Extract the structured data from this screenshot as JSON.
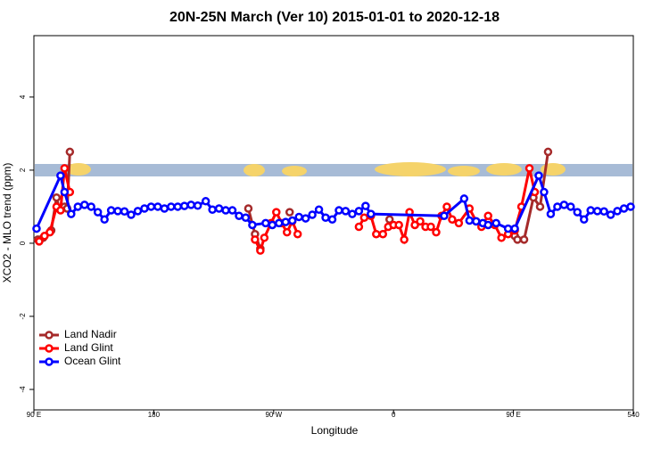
{
  "chart_data": {
    "type": "line",
    "title": "20N-25N March (Ver 10)   2015-01-01 to 2020-12-18",
    "x_label": "Longitude",
    "y_label": "XCO2 - MLO trend (ppm)",
    "xlim": [
      90,
      540
    ],
    "xticks": [
      {
        "value": 90,
        "label": "90 E"
      },
      180,
      {
        "value": 270,
        "label": "90 W"
      },
      {
        "value": 360,
        "label": "0"
      },
      {
        "value": 450,
        "label": "90 E"
      },
      540
    ],
    "ylim": [
      -4.56,
      5.68
    ],
    "yticks": [
      -4,
      -2,
      0,
      2,
      4
    ],
    "legend": "bottom-left",
    "series": [
      {
        "name": "Land Nadir",
        "color": "#a52a2a",
        "x": [
          93,
          97,
          103,
          107,
          109,
          113,
          115,
          117,
          null,
          251,
          256,
          260,
          null,
          282,
          null,
          357,
          null,
          451,
          453,
          458,
          465,
          470,
          476
        ],
        "values": [
          0.1,
          0.15,
          0.35,
          1.25,
          0.95,
          1.0,
          0.95,
          2.5,
          null,
          0.95,
          0.25,
          -0.15,
          null,
          0.85,
          null,
          0.65,
          null,
          0.2,
          0.1,
          0.1,
          1.25,
          1.0,
          2.5
        ]
      },
      {
        "name": "Land Glint",
        "color": "#ff0000",
        "x": [
          94,
          98,
          102,
          107,
          110,
          113,
          117,
          null,
          256,
          260,
          263,
          268,
          272,
          276,
          280,
          284,
          288,
          null,
          334,
          338,
          343,
          347,
          352,
          356,
          360,
          364,
          368,
          372,
          376,
          380,
          384,
          388,
          392,
          396,
          400,
          404,
          409,
          417,
          422,
          426,
          431,
          436,
          441,
          446,
          451,
          456,
          462,
          466
        ],
        "values": [
          0.05,
          0.2,
          0.3,
          1.0,
          0.9,
          2.05,
          1.4,
          null,
          0.1,
          -0.2,
          0.15,
          0.55,
          0.85,
          0.55,
          0.3,
          0.6,
          0.25,
          null,
          0.45,
          0.7,
          0.75,
          0.25,
          0.25,
          0.45,
          0.5,
          0.5,
          0.1,
          0.85,
          0.5,
          0.6,
          0.45,
          0.45,
          0.3,
          0.75,
          1.0,
          0.65,
          0.55,
          0.95,
          0.6,
          0.45,
          0.75,
          0.5,
          0.15,
          0.25,
          0.35,
          1.0,
          2.05,
          1.4
        ]
      },
      {
        "name": "Ocean Glint",
        "color": "#0000ff",
        "x": [
          92,
          110,
          113,
          118,
          123,
          128,
          133,
          138,
          143,
          148,
          153,
          158,
          163,
          168,
          173,
          178,
          183,
          188,
          193,
          198,
          203,
          208,
          213,
          219,
          224,
          229,
          234,
          239,
          244,
          249,
          254,
          264,
          269,
          274,
          279,
          284,
          289,
          294,
          299,
          304,
          309,
          314,
          319,
          324,
          329,
          334,
          339,
          343,
          398,
          413,
          417,
          422,
          427,
          431,
          437,
          446,
          451,
          469,
          473,
          478,
          483,
          488,
          493,
          498,
          503,
          508,
          513,
          518,
          523,
          528,
          533,
          538
        ],
        "values": [
          0.4,
          1.85,
          1.4,
          0.8,
          1.0,
          1.05,
          1.0,
          0.85,
          0.65,
          0.9,
          0.88,
          0.87,
          0.78,
          0.88,
          0.95,
          1.0,
          1.0,
          0.95,
          1.0,
          1.0,
          1.02,
          1.05,
          1.03,
          1.15,
          0.92,
          0.95,
          0.9,
          0.9,
          0.75,
          0.7,
          0.5,
          0.55,
          0.5,
          0.55,
          0.58,
          0.62,
          0.72,
          0.68,
          0.78,
          0.92,
          0.7,
          0.65,
          0.9,
          0.88,
          0.8,
          0.88,
          1.02,
          0.8,
          0.75,
          1.22,
          0.62,
          0.6,
          0.55,
          0.5,
          0.55,
          0.4,
          0.4,
          1.85,
          1.4,
          0.8,
          1.0,
          1.05,
          1.0,
          0.85,
          0.65,
          0.9,
          0.88,
          0.87,
          0.78,
          0.88,
          0.95,
          1.0
        ]
      }
    ]
  }
}
